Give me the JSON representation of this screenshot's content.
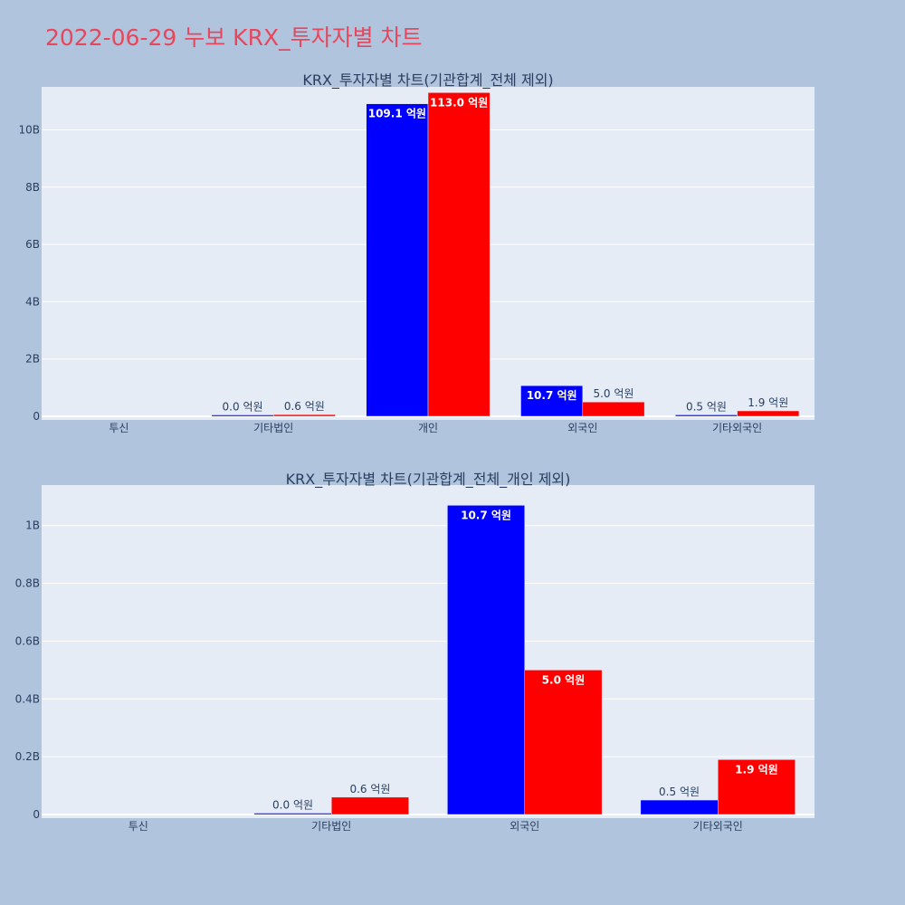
{
  "page": {
    "title": "2022-06-29 누보 KRX_투자자별 차트"
  },
  "colors": {
    "background": "#b0c4de",
    "plot_bg": "#e5ecf6",
    "grid": "#ffffff",
    "title": "#e8465a",
    "axis_text": "#2a3f5f",
    "sell": "#0000ff",
    "buy": "#ff0000"
  },
  "chart_data": [
    {
      "type": "bar",
      "title": "KRX_투자자별 차트(기관합계_전체 제외)",
      "categories": [
        "투신",
        "기타법인",
        "개인",
        "외국인",
        "기타외국인"
      ],
      "series": [
        {
          "color": "#0000ff",
          "values": [
            0,
            0.003,
            10.91,
            1.07,
            0.05
          ],
          "labels": [
            "",
            "0.0 억원",
            "109.1 억원",
            "10.7 억원",
            "0.5 억원"
          ]
        },
        {
          "color": "#ff0000",
          "values": [
            0,
            0.06,
            11.3,
            0.5,
            0.19
          ],
          "labels": [
            "",
            "0.6 억원",
            "113.0 억원",
            "5.0 억원",
            "1.9 억원"
          ]
        }
      ],
      "ylim": [
        0,
        11.5
      ],
      "yticks": [
        0,
        2,
        4,
        6,
        8,
        10
      ],
      "ytick_labels": [
        "0",
        "2B",
        "4B",
        "6B",
        "8B",
        "10B"
      ],
      "grid": true,
      "xlabel": "",
      "ylabel": ""
    },
    {
      "type": "bar",
      "title": "KRX_투자자별 차트(기관합계_전체_개인 제외)",
      "categories": [
        "투신",
        "기타법인",
        "외국인",
        "기타외국인"
      ],
      "series": [
        {
          "color": "#0000ff",
          "values": [
            0,
            0.003,
            1.07,
            0.05
          ],
          "labels": [
            "",
            "0.0 억원",
            "10.7 억원",
            "0.5 억원"
          ]
        },
        {
          "color": "#ff0000",
          "values": [
            0,
            0.06,
            0.5,
            0.19
          ],
          "labels": [
            "",
            "0.6 억원",
            "5.0 억원",
            "1.9 억원"
          ]
        }
      ],
      "ylim": [
        0,
        1.14
      ],
      "yticks": [
        0,
        0.2,
        0.4,
        0.6,
        0.8,
        1.0
      ],
      "ytick_labels": [
        "0",
        "0.2B",
        "0.4B",
        "0.6B",
        "0.8B",
        "1B"
      ],
      "grid": true,
      "xlabel": "",
      "ylabel": ""
    }
  ]
}
